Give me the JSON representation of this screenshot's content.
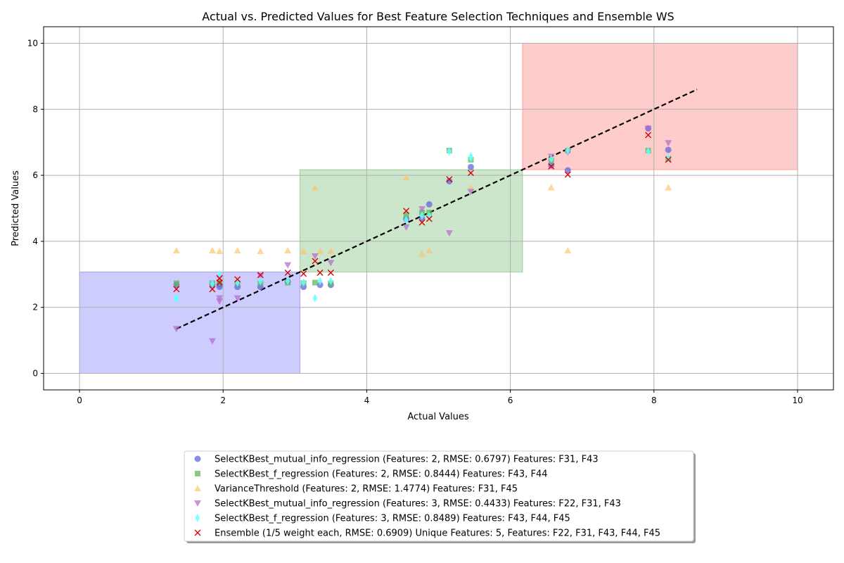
{
  "chart_data": {
    "type": "scatter",
    "title": "Actual vs. Predicted Values for Best Feature Selection Techniques and Ensemble WS",
    "xlabel": "Actual Values",
    "ylabel": "Predicted Values",
    "xlim": [
      -0.5,
      10.5
    ],
    "ylim": [
      -0.5,
      10.5
    ],
    "xticks": [
      0,
      2,
      4,
      6,
      8,
      10
    ],
    "yticks": [
      0,
      2,
      4,
      6,
      8,
      10
    ],
    "grid": true,
    "legend_position": "bottom-center",
    "regions": [
      {
        "x": [
          0,
          3.07
        ],
        "y": [
          0,
          3.07
        ],
        "color": "#0000ff",
        "opacity": 0.2
      },
      {
        "x": [
          3.07,
          6.17
        ],
        "y": [
          3.07,
          6.17
        ],
        "color": "#008000",
        "opacity": 0.2
      },
      {
        "x": [
          6.17,
          10
        ],
        "y": [
          6.17,
          10
        ],
        "color": "#ff0000",
        "opacity": 0.2
      }
    ],
    "trend_line": {
      "x": [
        1.35,
        8.6
      ],
      "y": [
        1.35,
        8.6
      ],
      "color": "#000000",
      "style": "dashed"
    },
    "series": [
      {
        "name": "SelectKBest_mutual_info_regression (Features: 2, RMSE: 0.6797) Features: F31, F43",
        "marker": "circle",
        "color": "#6666e0",
        "opacity": 0.75,
        "x": [
          1.35,
          1.85,
          1.95,
          1.95,
          2.2,
          2.52,
          2.9,
          3.12,
          3.35,
          3.5,
          4.55,
          4.77,
          4.87,
          5.15,
          5.45,
          6.57,
          6.8,
          7.92,
          8.2
        ],
        "y": [
          2.68,
          2.68,
          2.62,
          2.7,
          2.62,
          2.62,
          2.78,
          2.62,
          2.68,
          2.68,
          4.68,
          4.68,
          5.12,
          5.82,
          6.25,
          6.3,
          6.15,
          7.42,
          6.77
        ]
      },
      {
        "name": "SelectKBest_f_regression (Features: 2, RMSE: 0.8444) Features: F43, F44",
        "marker": "square",
        "color": "#5cb85c",
        "opacity": 0.75,
        "x": [
          1.35,
          1.85,
          1.95,
          2.2,
          2.52,
          2.9,
          3.12,
          3.28,
          3.5,
          4.55,
          4.77,
          4.87,
          5.15,
          5.45,
          6.57,
          6.8,
          7.92,
          8.2
        ],
        "y": [
          2.73,
          2.73,
          2.75,
          2.73,
          2.73,
          2.75,
          2.73,
          2.75,
          2.73,
          4.8,
          4.87,
          4.87,
          6.75,
          6.47,
          6.45,
          6.75,
          6.75,
          6.5
        ]
      },
      {
        "name": "VarianceThreshold (Features: 2, RMSE: 1.4774) Features: F31, F45",
        "marker": "triangle-up",
        "color": "#ffc266",
        "opacity": 0.65,
        "x": [
          1.35,
          1.85,
          1.95,
          2.2,
          2.52,
          2.9,
          3.12,
          3.28,
          3.35,
          3.5,
          4.55,
          4.77,
          4.87,
          5.45,
          6.57,
          6.8,
          8.2
        ],
        "y": [
          3.72,
          3.72,
          3.7,
          3.72,
          3.7,
          3.72,
          3.7,
          5.63,
          3.7,
          3.7,
          5.93,
          3.62,
          3.72,
          5.63,
          5.63,
          3.72,
          5.63
        ]
      },
      {
        "name": "SelectKBest_mutual_info_regression (Features: 3, RMSE: 0.4433) Features: F22, F31, F43",
        "marker": "triangle-down",
        "color": "#b366cc",
        "opacity": 0.7,
        "x": [
          1.35,
          1.85,
          1.95,
          1.95,
          1.95,
          2.2,
          2.52,
          2.9,
          3.28,
          3.5,
          4.55,
          4.77,
          5.15,
          5.45,
          6.57,
          6.8,
          7.92,
          8.2
        ],
        "y": [
          1.35,
          0.98,
          2.28,
          2.18,
          2.9,
          2.28,
          2.95,
          3.28,
          3.55,
          3.35,
          4.43,
          4.98,
          4.25,
          5.5,
          6.57,
          6.7,
          7.42,
          6.98
        ]
      },
      {
        "name": "SelectKBest_f_regression (Features: 3, RMSE: 0.8489) Features: F43, F44, F45",
        "marker": "thin-diamond",
        "color": "#66ffff",
        "opacity": 0.85,
        "x": [
          1.35,
          1.35,
          1.85,
          1.95,
          2.2,
          2.52,
          2.9,
          3.12,
          3.28,
          3.35,
          3.5,
          4.55,
          4.77,
          4.87,
          5.15,
          5.45,
          5.45,
          6.57,
          6.8,
          7.92,
          8.2
        ],
        "y": [
          2.3,
          2.25,
          2.72,
          3.0,
          2.75,
          2.8,
          2.8,
          2.75,
          2.28,
          2.8,
          2.8,
          4.65,
          4.78,
          4.78,
          6.72,
          6.52,
          6.58,
          6.5,
          6.75,
          6.72,
          6.52
        ]
      },
      {
        "name": "Ensemble (1/5 weight each, RMSE: 0.6909) Unique Features: 5, Features: F22, F31, F43, F44, F45",
        "marker": "x",
        "color": "#dd0000",
        "opacity": 1,
        "x": [
          1.35,
          1.85,
          1.95,
          1.95,
          2.2,
          2.52,
          2.9,
          3.12,
          3.28,
          3.35,
          3.5,
          4.55,
          4.77,
          4.87,
          5.15,
          5.45,
          6.57,
          6.8,
          7.92,
          8.2
        ],
        "y": [
          2.55,
          2.55,
          2.88,
          2.75,
          2.85,
          2.98,
          3.05,
          3.02,
          3.4,
          3.05,
          3.05,
          4.92,
          4.57,
          4.68,
          5.88,
          6.07,
          6.27,
          6.02,
          7.22,
          6.47
        ]
      }
    ]
  }
}
